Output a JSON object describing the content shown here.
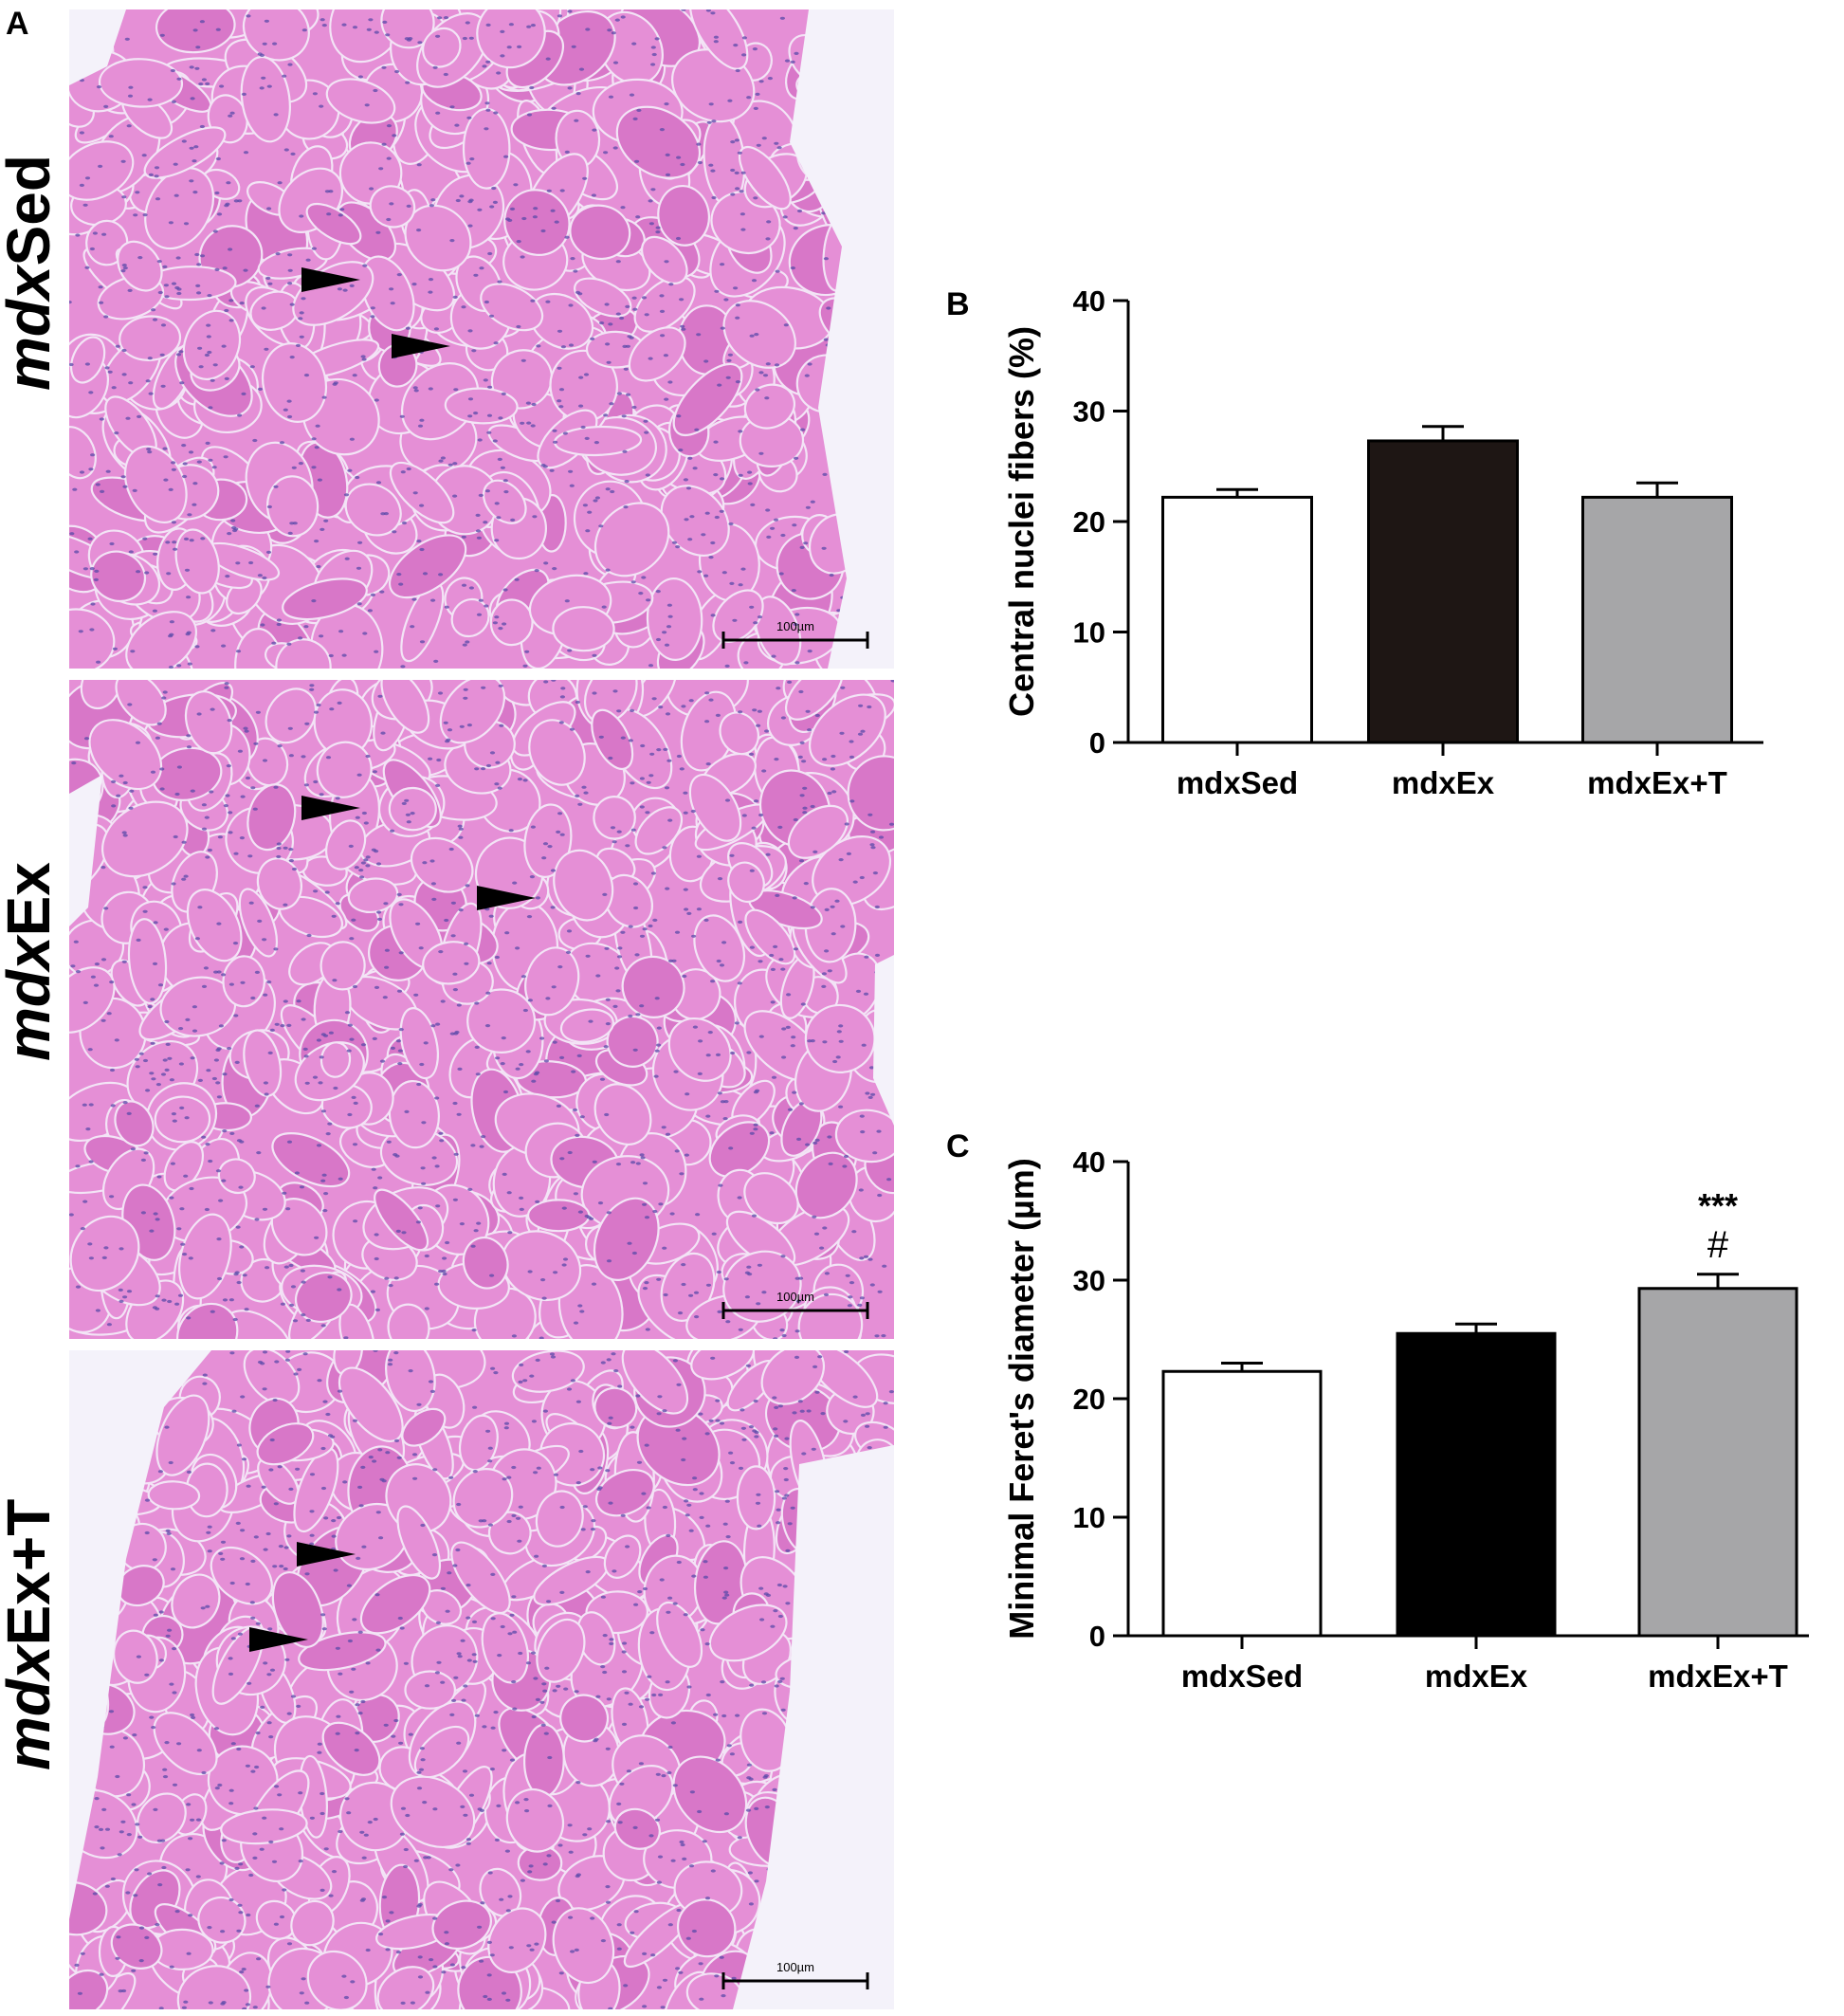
{
  "panels": {
    "a_letter": "A",
    "b_letter": "B",
    "c_letter": "C"
  },
  "micrographs": [
    {
      "label_prefix": "mdx",
      "label_suffix": "Sed",
      "scale_bar": "100µm"
    },
    {
      "label_prefix": "mdx",
      "label_suffix": "Ex",
      "scale_bar": "100µm"
    },
    {
      "label_prefix": "mdx",
      "label_suffix": "Ex+T",
      "scale_bar": "100µm"
    }
  ],
  "colors": {
    "tissue": "#e58fd6",
    "tissue_dark": "#d877c8",
    "membrane": "#f3e4f6",
    "nuclei": "#5a4aa8",
    "arrow": "#000000",
    "bar_mdxSed": "#ffffff",
    "bar_mdxEx_b": "#1e1614",
    "bar_mdxEx_c": "#000000",
    "bar_mdxExT": "#a6a6a8"
  },
  "chart_data": [
    {
      "type": "bar",
      "panel": "B",
      "categories": [
        "mdxSed",
        "mdxEx",
        "mdxEx+T"
      ],
      "values": [
        22.2,
        27.3,
        22.2
      ],
      "errors": [
        0.7,
        1.3,
        1.3
      ],
      "ylabel": "Central nuclei fibers (%)",
      "ylim": [
        0,
        40
      ],
      "yticks": [
        "0",
        "10",
        "20",
        "30",
        "40"
      ],
      "annotations": [
        "",
        "",
        ""
      ],
      "grid": false
    },
    {
      "type": "bar",
      "panel": "C",
      "categories": [
        "mdxSed",
        "mdxEx",
        "mdxEx+T"
      ],
      "values": [
        22.3,
        25.5,
        29.3
      ],
      "errors": [
        0.7,
        0.8,
        1.2
      ],
      "ylabel": "Minimal Feret's diameter (µm)",
      "ylim": [
        0,
        40
      ],
      "yticks": [
        "0",
        "10",
        "20",
        "30",
        "40"
      ],
      "annotations": [
        "",
        "",
        "***\n#"
      ],
      "grid": false
    }
  ]
}
